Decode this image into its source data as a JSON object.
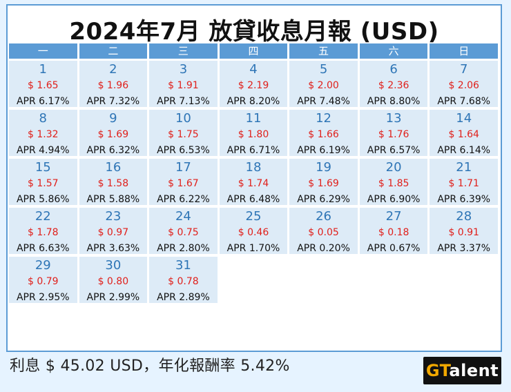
{
  "title": "2024年7月 放貸收息月報 (USD)",
  "weekdays": [
    "一",
    "二",
    "三",
    "四",
    "五",
    "六",
    "日"
  ],
  "days": [
    {
      "day": "1",
      "amount": "$ 1.65",
      "apr": "APR 6.17%"
    },
    {
      "day": "2",
      "amount": "$ 1.96",
      "apr": "APR 7.32%"
    },
    {
      "day": "3",
      "amount": "$ 1.91",
      "apr": "APR 7.13%"
    },
    {
      "day": "4",
      "amount": "$ 2.19",
      "apr": "APR 8.20%"
    },
    {
      "day": "5",
      "amount": "$ 2.00",
      "apr": "APR 7.48%"
    },
    {
      "day": "6",
      "amount": "$ 2.36",
      "apr": "APR 8.80%"
    },
    {
      "day": "7",
      "amount": "$ 2.06",
      "apr": "APR 7.68%"
    },
    {
      "day": "8",
      "amount": "$ 1.32",
      "apr": "APR 4.94%"
    },
    {
      "day": "9",
      "amount": "$ 1.69",
      "apr": "APR 6.32%"
    },
    {
      "day": "10",
      "amount": "$ 1.75",
      "apr": "APR 6.53%"
    },
    {
      "day": "11",
      "amount": "$ 1.80",
      "apr": "APR 6.71%"
    },
    {
      "day": "12",
      "amount": "$ 1.66",
      "apr": "APR 6.19%"
    },
    {
      "day": "13",
      "amount": "$ 1.76",
      "apr": "APR 6.57%"
    },
    {
      "day": "14",
      "amount": "$ 1.64",
      "apr": "APR 6.14%"
    },
    {
      "day": "15",
      "amount": "$ 1.57",
      "apr": "APR 5.86%"
    },
    {
      "day": "16",
      "amount": "$ 1.58",
      "apr": "APR 5.88%"
    },
    {
      "day": "17",
      "amount": "$ 1.67",
      "apr": "APR 6.22%"
    },
    {
      "day": "18",
      "amount": "$ 1.74",
      "apr": "APR 6.48%"
    },
    {
      "day": "19",
      "amount": "$ 1.69",
      "apr": "APR 6.29%"
    },
    {
      "day": "20",
      "amount": "$ 1.85",
      "apr": "APR 6.90%"
    },
    {
      "day": "21",
      "amount": "$ 1.71",
      "apr": "APR 6.39%"
    },
    {
      "day": "22",
      "amount": "$ 1.78",
      "apr": "APR 6.63%"
    },
    {
      "day": "23",
      "amount": "$ 0.97",
      "apr": "APR 3.63%"
    },
    {
      "day": "24",
      "amount": "$ 0.75",
      "apr": "APR 2.80%"
    },
    {
      "day": "25",
      "amount": "$ 0.46",
      "apr": "APR 1.70%"
    },
    {
      "day": "26",
      "amount": "$ 0.05",
      "apr": "APR 0.20%"
    },
    {
      "day": "27",
      "amount": "$ 0.18",
      "apr": "APR 0.67%"
    },
    {
      "day": "28",
      "amount": "$ 0.91",
      "apr": "APR 3.37%"
    },
    {
      "day": "29",
      "amount": "$ 0.79",
      "apr": "APR 2.95%"
    },
    {
      "day": "30",
      "amount": "$ 0.80",
      "apr": "APR 2.99%"
    },
    {
      "day": "31",
      "amount": "$ 0.78",
      "apr": "APR 2.89%"
    }
  ],
  "footer": "利息 $ 45.02 USD，年化報酬率 5.42%",
  "logo": {
    "part1": "GT",
    "part2": "alent"
  },
  "colors": {
    "header_blue": "#5b9bd5",
    "cell_bg": "#ddebf7",
    "day_number": "#2e75b6",
    "amount_red": "#e0201b",
    "page_bg": "#e6f3ff",
    "logo_accent": "#f2a900"
  }
}
